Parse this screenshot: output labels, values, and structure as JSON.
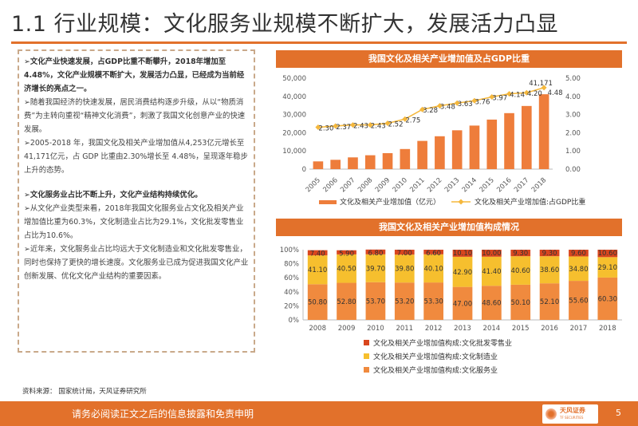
{
  "page": {
    "title": "1.1 行业规模：文化服务业规模不断扩大，发展活力凸显",
    "source": "资料来源：   国家统计局，天风证券研究所",
    "footer_text": "请务必阅读正文之后的信息披露和免责申明",
    "page_number": "5",
    "logo_text": "天风证券",
    "logo_sub": "TF SECURITIES",
    "accent_color": "#e2712b"
  },
  "text_box": {
    "p1_bold": "➢文化产业快速发展，占GDP比重不断攀升，2018年增加至4.48%，文化产业规模不断扩大，发展活力凸显，已经成为当前经济增长的亮点之一。",
    "p2": "➢随着我国经济的快速发展，居民消费结构逐步升级，从以“物质消费”为主转向重视“精神文化消费”，刺激了我国文化创意产业的快速发展。",
    "p3": "➢2005-2018 年，我国文化及相关产业增加值从4,253亿元增长至 41,171亿元，占 GDP 比重由2.30%增长至 4.48%，呈现逐年稳步上升的态势。",
    "p4_bold": "➢文化服务业占比不断上升，文化产业结构持续优化。",
    "p5": "➢从文化产业类型来看，2018年我国文化服务业占文化及相关产业增加值比重为60.3%，文化制造业占比为29.1%，文化批发零售业占比为10.6%。",
    "p6": "➢近年来，文化服务业占比均远大于文化制造业和文化批发零售业，同时也保持了更快的增长速度。文化服务业已成为促进我国文化产业创新发展、优化文化产业结构的重要因素。"
  },
  "chart_data": [
    {
      "type": "bar",
      "title": "我国文化及相关产业增加值及占GDP比重",
      "categories": [
        "2005",
        "2006",
        "2007",
        "2008",
        "2009",
        "2010",
        "2011",
        "2012",
        "2013",
        "2014",
        "2015",
        "2016",
        "2017",
        "2018"
      ],
      "ylim": [
        0,
        50000
      ],
      "y2lim": [
        0,
        5
      ],
      "yticks": [
        "0",
        "10,000",
        "20,000",
        "30,000",
        "40,000",
        "50,000"
      ],
      "y2ticks": [
        "0.00",
        "1.00",
        "2.00",
        "3.00",
        "4.00",
        "5.00"
      ],
      "series": [
        {
          "name": "文化及相关产业增加值（亿元）",
          "kind": "bar",
          "axis": "left",
          "color": "#ee7d3b",
          "values": [
            4253,
            5123,
            6455,
            7630,
            8786,
            11052,
            15516,
            18071,
            21351,
            23940,
            27235,
            30785,
            34722,
            41171
          ]
        },
        {
          "name": "文化及相关产业增加值:占GDP比重",
          "kind": "line",
          "axis": "right",
          "color": "#f5b83d",
          "values": [
            2.3,
            2.37,
            2.43,
            2.43,
            2.52,
            2.75,
            3.28,
            3.48,
            3.63,
            3.76,
            3.97,
            4.14,
            4.2,
            4.48
          ]
        }
      ],
      "line_labels": [
        "2.30",
        "2.37",
        "2.43",
        "2.43",
        "2.52",
        "2.75",
        "3.28",
        "3.48",
        "3.63",
        "3.76",
        "3.97",
        "4.14",
        "4.20",
        "4.48"
      ],
      "bar_top_label": "41,171",
      "legend_position": "bottom",
      "grid": false
    },
    {
      "type": "bar",
      "stacked": "percent",
      "title": "我国文化及相关产业增加值构成情况",
      "categories": [
        "2008",
        "2009",
        "2010",
        "2011",
        "2012",
        "2013",
        "2014",
        "2015",
        "2016",
        "2017",
        "2018"
      ],
      "ylim": [
        0,
        100
      ],
      "yticks": [
        "0%",
        "20%",
        "40%",
        "60%",
        "80%",
        "100%"
      ],
      "series": [
        {
          "name": "文化及相关产业增加值构成:文化服务业",
          "color": "#f08a3e",
          "values": [
            50.8,
            52.8,
            53.7,
            53.2,
            53.3,
            47.0,
            48.6,
            50.1,
            52.1,
            55.6,
            60.3
          ],
          "labels": [
            "50.80",
            "52.80",
            "53.70",
            "53.20",
            "53.30",
            "47.00",
            "48.60",
            "50.10",
            "52.10",
            "55.60",
            "60.30"
          ]
        },
        {
          "name": "文化及相关产业增加值构成:文化制造业",
          "color": "#f6bf2e",
          "values": [
            41.1,
            40.5,
            39.7,
            39.8,
            40.1,
            42.9,
            41.4,
            40.6,
            38.6,
            34.8,
            29.1
          ],
          "labels": [
            "41.10",
            "40.50",
            "39.70",
            "39.80",
            "40.10",
            "42.90",
            "41.40",
            "40.60",
            "38.60",
            "34.80",
            "29.10"
          ]
        },
        {
          "name": "文化及相关产业增加值构成:文化批发零售业",
          "color": "#d9461e",
          "values": [
            7.4,
            5.9,
            6.8,
            7.0,
            6.6,
            10.1,
            10.0,
            9.3,
            9.3,
            9.6,
            10.6
          ],
          "labels": [
            "7.40",
            "5.90",
            "6.80",
            "7.00",
            "6.60",
            "10.10",
            "10.00",
            "9.30",
            "9.30",
            "9.60",
            "10.60"
          ]
        }
      ],
      "legend_position": "bottom",
      "grid": false
    }
  ]
}
